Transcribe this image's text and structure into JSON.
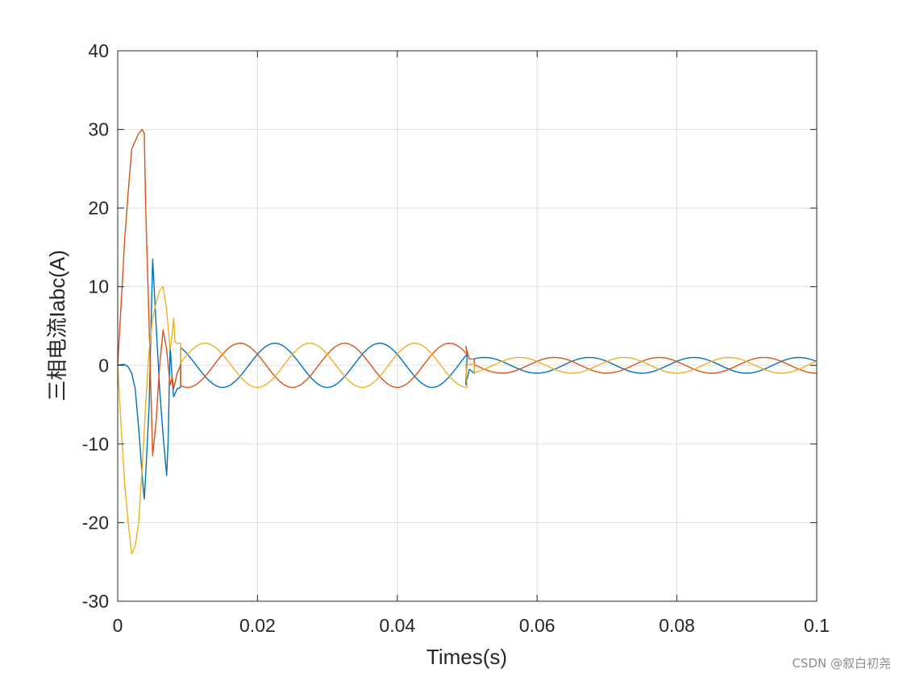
{
  "chart_data": {
    "type": "line",
    "title": "",
    "xlabel": "Times(s)",
    "ylabel": "三相电流Iabc(A)",
    "xlim": [
      0,
      0.1
    ],
    "ylim": [
      -30,
      40
    ],
    "xticks": [
      0,
      0.02,
      0.04,
      0.06,
      0.08,
      0.1
    ],
    "xtick_labels": [
      "0",
      "0.02",
      "0.04",
      "0.06",
      "0.08",
      "0.1"
    ],
    "yticks": [
      -30,
      -20,
      -10,
      0,
      10,
      20,
      30,
      40
    ],
    "ytick_labels": [
      "-30",
      "-20",
      "-10",
      "0",
      "10",
      "20",
      "30",
      "40"
    ],
    "grid": true,
    "legend": "none",
    "series": [
      {
        "color": "#0072BD",
        "transient": [
          [
            0,
            0
          ],
          [
            0.0005,
            0.1
          ],
          [
            0.001,
            0.1
          ],
          [
            0.0015,
            -0.2
          ],
          [
            0.002,
            -1
          ],
          [
            0.0025,
            -3
          ],
          [
            0.003,
            -8
          ],
          [
            0.0035,
            -14
          ],
          [
            0.0038,
            -17
          ],
          [
            0.004,
            -14
          ],
          [
            0.0045,
            -5
          ],
          [
            0.005,
            13.5
          ],
          [
            0.0055,
            5
          ],
          [
            0.006,
            -3
          ],
          [
            0.0065,
            -9
          ],
          [
            0.007,
            -14
          ],
          [
            0.0072,
            -10
          ],
          [
            0.0075,
            2.5
          ],
          [
            0.0078,
            -2
          ],
          [
            0.008,
            -4
          ],
          [
            0.0085,
            -3
          ],
          [
            0.009,
            -2.8
          ]
        ],
        "steady_1": {
          "x_range": [
            0.009,
            0.05
          ],
          "amplitude": 2.8,
          "phase_deg": -90
        },
        "step_x": 0.05,
        "step_points": [
          [
            0.0498,
            -2.5
          ],
          [
            0.0503,
            -0.5
          ],
          [
            0.051,
            -1
          ]
        ],
        "steady_2": {
          "x_range": [
            0.051,
            0.1
          ],
          "amplitude": 1.0,
          "phase_deg": -90
        }
      },
      {
        "color": "#D95319",
        "transient": [
          [
            0,
            0
          ],
          [
            0.0005,
            8
          ],
          [
            0.001,
            16
          ],
          [
            0.0015,
            22
          ],
          [
            0.002,
            27.5
          ],
          [
            0.0025,
            28.5
          ],
          [
            0.003,
            29.5
          ],
          [
            0.0035,
            30
          ],
          [
            0.0038,
            29.5
          ],
          [
            0.004,
            20
          ],
          [
            0.0045,
            5
          ],
          [
            0.005,
            -11.5
          ],
          [
            0.0055,
            -7
          ],
          [
            0.006,
            0
          ],
          [
            0.0065,
            4.5
          ],
          [
            0.007,
            2
          ],
          [
            0.0075,
            -2.5
          ],
          [
            0.0078,
            -1.5
          ],
          [
            0.008,
            -3
          ],
          [
            0.0085,
            -1
          ],
          [
            0.009,
            0
          ]
        ],
        "steady_1": {
          "x_range": [
            0.009,
            0.05
          ],
          "amplitude": 2.8,
          "phase_deg": 30
        },
        "step_x": 0.05,
        "step_points": [
          [
            0.0498,
            2.4
          ],
          [
            0.0503,
            0.8
          ],
          [
            0.051,
            0.8
          ]
        ],
        "steady_2": {
          "x_range": [
            0.051,
            0.1
          ],
          "amplitude": 1.0,
          "phase_deg": 30
        }
      },
      {
        "color": "#EDB120",
        "transient": [
          [
            0,
            0
          ],
          [
            0.0005,
            -8
          ],
          [
            0.001,
            -15
          ],
          [
            0.0015,
            -20
          ],
          [
            0.002,
            -24
          ],
          [
            0.0025,
            -23
          ],
          [
            0.003,
            -20
          ],
          [
            0.0035,
            -13
          ],
          [
            0.004,
            -5
          ],
          [
            0.0045,
            2
          ],
          [
            0.005,
            6
          ],
          [
            0.0055,
            8
          ],
          [
            0.006,
            9.5
          ],
          [
            0.0065,
            10
          ],
          [
            0.007,
            7
          ],
          [
            0.0075,
            2
          ],
          [
            0.0078,
            4
          ],
          [
            0.008,
            6
          ],
          [
            0.0082,
            3
          ],
          [
            0.0085,
            2.8
          ],
          [
            0.009,
            2.8
          ]
        ],
        "steady_1": {
          "x_range": [
            0.009,
            0.05
          ],
          "amplitude": 2.8,
          "phase_deg": 150
        },
        "step_x": 0.05,
        "step_points": [
          [
            0.0498,
            0.2
          ],
          [
            0.0503,
            0.1
          ],
          [
            0.051,
            0.2
          ]
        ],
        "steady_2": {
          "x_range": [
            0.051,
            0.1
          ],
          "amplitude": 1.0,
          "phase_deg": 150
        }
      }
    ],
    "fundamental_hz": 66.7
  },
  "watermark": "CSDN @叙白初尧"
}
